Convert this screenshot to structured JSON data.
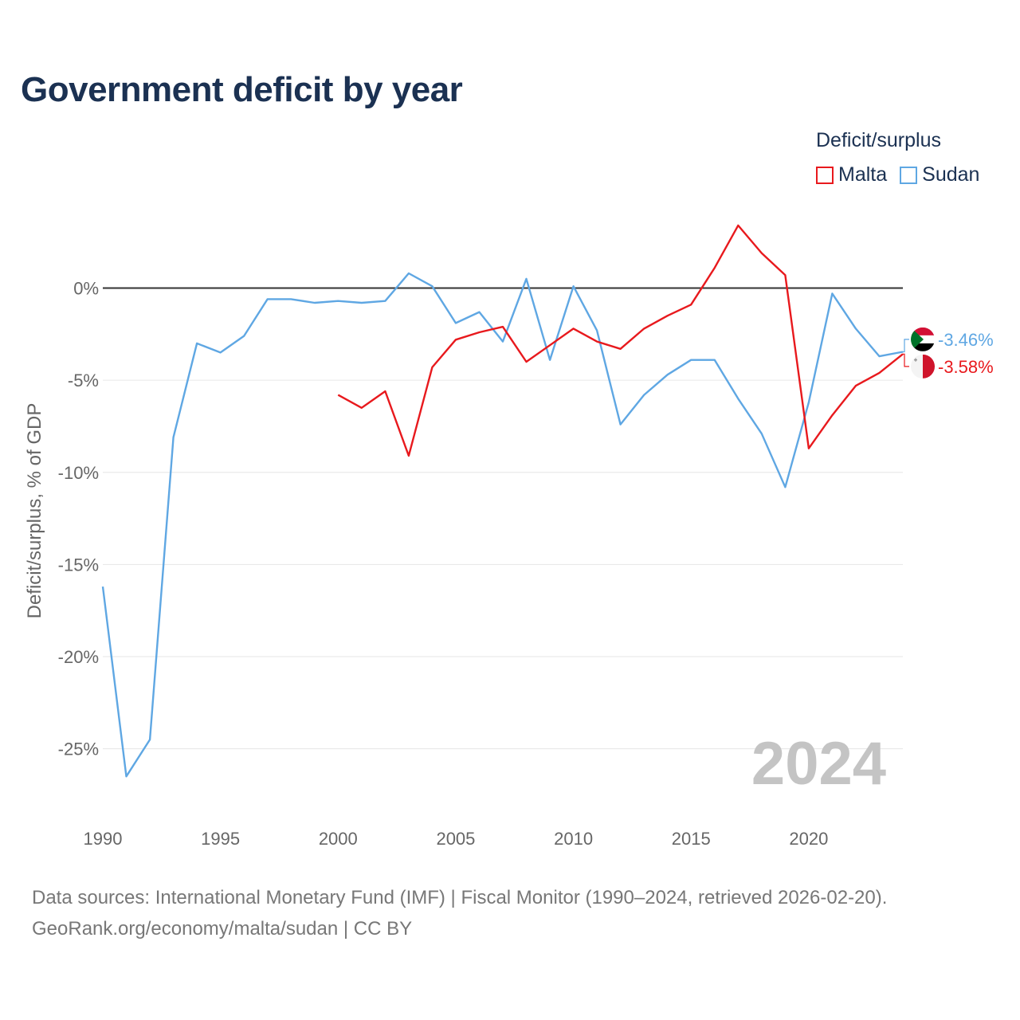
{
  "title": "Government deficit by year",
  "legend": {
    "title": "Deficit/surplus",
    "items": [
      {
        "label": "Malta",
        "color": "#e8191d"
      },
      {
        "label": "Sudan",
        "color": "#5fa7e3"
      }
    ]
  },
  "chart_data": {
    "type": "line",
    "title": "Government deficit by year",
    "xlabel": "",
    "ylabel": "Deficit/surplus, % of GDP",
    "xlim": [
      1990,
      2024
    ],
    "ylim": [
      -28,
      4
    ],
    "x_ticks": [
      1990,
      1995,
      2000,
      2005,
      2010,
      2015,
      2020
    ],
    "y_ticks": [
      0,
      -5,
      -10,
      -15,
      -20,
      -25
    ],
    "y_tick_labels": [
      "0%",
      "-5%",
      "-10%",
      "-15%",
      "-20%",
      "-25%"
    ],
    "year_watermark": "2024",
    "series": [
      {
        "name": "Malta",
        "color": "#e8191d",
        "end_label": "-3.58%",
        "flag": "malta-flag",
        "x": [
          2000,
          2001,
          2002,
          2003,
          2004,
          2005,
          2006,
          2007,
          2008,
          2009,
          2010,
          2011,
          2012,
          2013,
          2014,
          2015,
          2016,
          2017,
          2018,
          2019,
          2020,
          2021,
          2022,
          2023,
          2024
        ],
        "values": [
          -5.8,
          -6.5,
          -5.6,
          -9.1,
          -4.3,
          -2.8,
          -2.4,
          -2.1,
          -4.0,
          -3.1,
          -2.2,
          -2.9,
          -3.3,
          -2.2,
          -1.5,
          -0.9,
          1.1,
          3.4,
          1.9,
          0.7,
          -8.7,
          -6.9,
          -5.3,
          -4.6,
          -3.58
        ]
      },
      {
        "name": "Sudan",
        "color": "#5fa7e3",
        "end_label": "-3.46%",
        "flag": "sudan-flag",
        "x": [
          1990,
          1991,
          1992,
          1993,
          1994,
          1995,
          1996,
          1997,
          1998,
          1999,
          2000,
          2001,
          2002,
          2003,
          2004,
          2005,
          2006,
          2007,
          2008,
          2009,
          2010,
          2011,
          2012,
          2013,
          2014,
          2015,
          2016,
          2017,
          2018,
          2019,
          2020,
          2021,
          2022,
          2023,
          2024
        ],
        "values": [
          -16.2,
          -26.5,
          -24.5,
          -8.1,
          -3.0,
          -3.5,
          -2.6,
          -0.6,
          -0.6,
          -0.8,
          -0.7,
          -0.8,
          -0.7,
          0.8,
          0.1,
          -1.9,
          -1.3,
          -2.9,
          0.5,
          -3.9,
          0.1,
          -2.3,
          -7.4,
          -5.8,
          -4.7,
          -3.9,
          -3.9,
          -6.0,
          -7.9,
          -10.8,
          -6.2,
          -0.3,
          -2.2,
          -3.7,
          -3.46
        ]
      }
    ]
  },
  "source": {
    "line1": "Data sources: International Monetary Fund (IMF) | Fiscal Monitor (1990–2024, retrieved 2026-02-20).",
    "line2": "GeoRank.org/economy/malta/sudan | CC BY"
  }
}
